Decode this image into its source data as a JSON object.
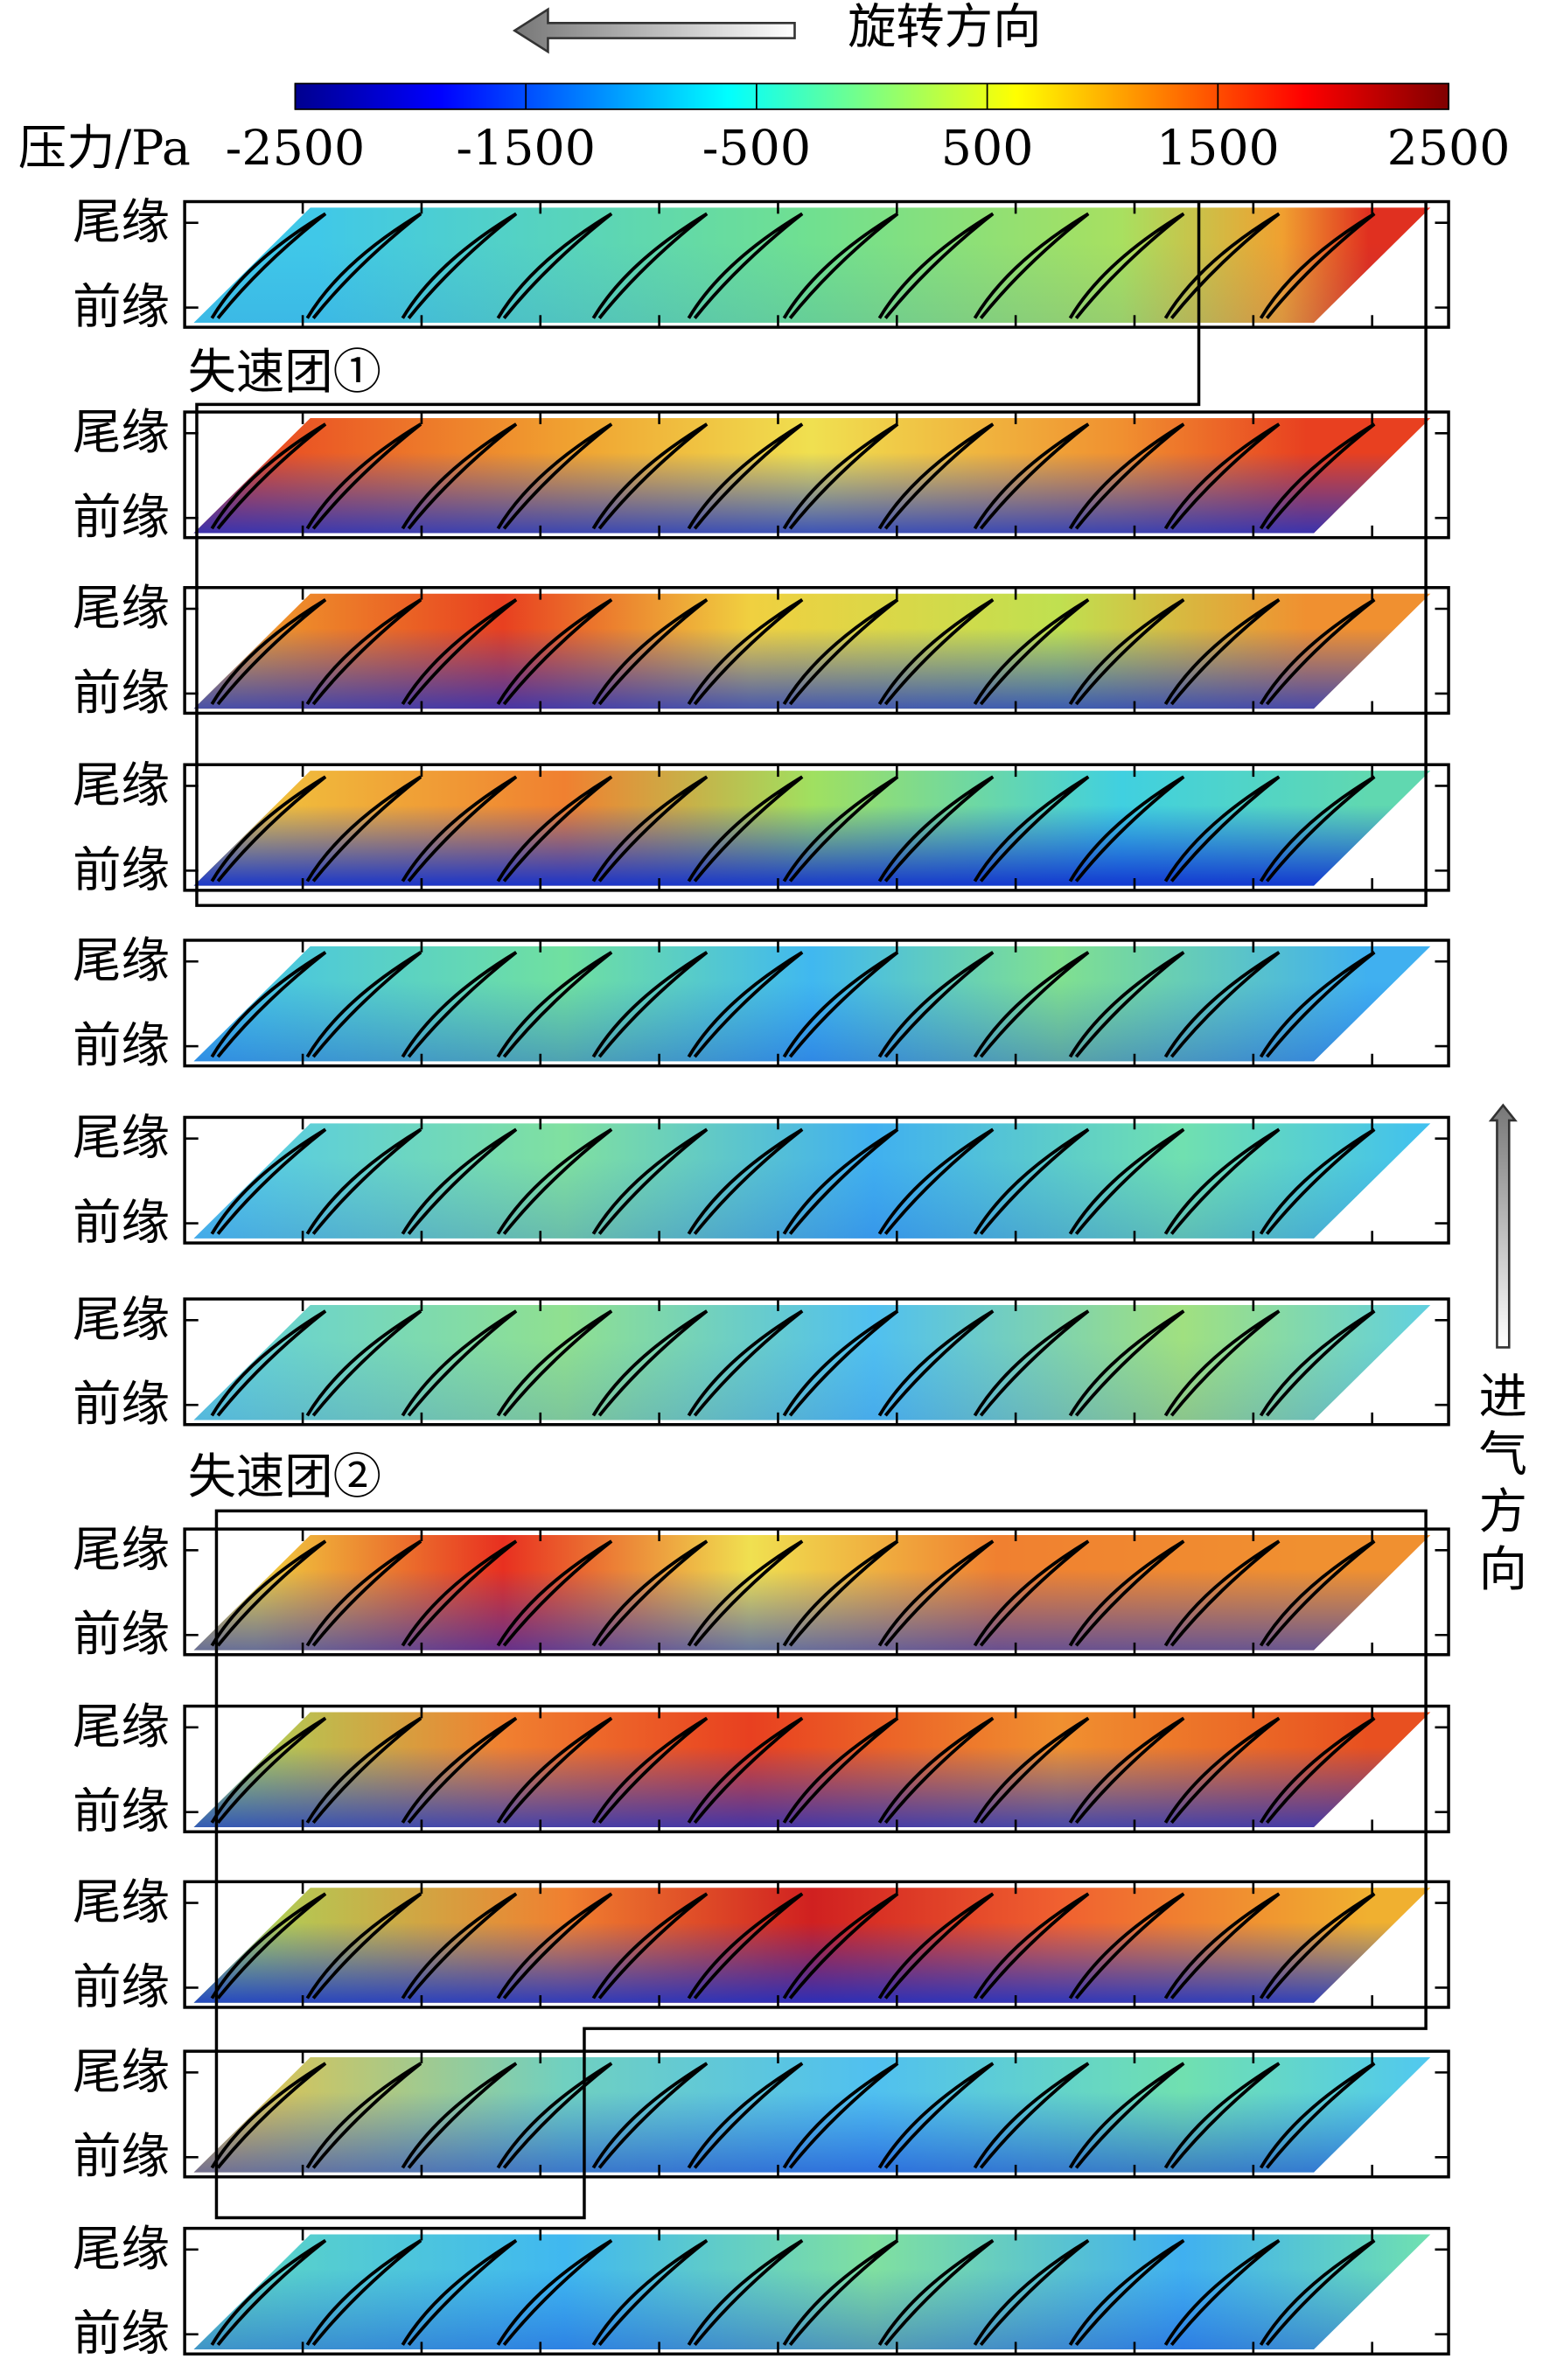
{
  "chart_data": {
    "type": "contour",
    "colorbar": {
      "label": "压力/Pa",
      "lim": [
        -2500,
        2500
      ],
      "ticks": [
        -2500,
        -1500,
        -500,
        500,
        1500,
        2500
      ]
    },
    "rotation_label": "旋转方向",
    "inflow_label": "进气方向",
    "ytick_labels": [
      "尾缘",
      "前缘"
    ],
    "stall_cells": [
      "失速团①",
      "失速团②"
    ]
  }
}
